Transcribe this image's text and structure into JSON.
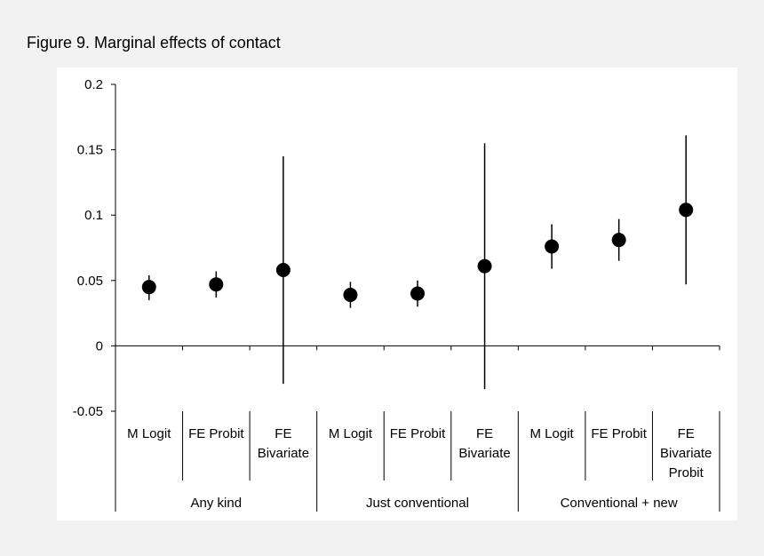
{
  "figure_title": "Figure 9. Marginal effects of contact",
  "chart_data": {
    "type": "scatter",
    "title": "",
    "xlabel": "",
    "ylabel": "",
    "ylim": [
      -0.05,
      0.2
    ],
    "yticks": [
      "0.2",
      "0.15",
      "0.1",
      "0.05",
      "0",
      "-0.05"
    ],
    "grid": false,
    "legend": "none",
    "marker_color": "#000000",
    "groups": [
      {
        "label": "Any kind",
        "points": [
          {
            "label_lines": [
              "M Logit"
            ],
            "value": 0.045,
            "lower": 0.035,
            "upper": 0.054
          },
          {
            "label_lines": [
              "FE Probit"
            ],
            "value": 0.047,
            "lower": 0.037,
            "upper": 0.057
          },
          {
            "label_lines": [
              "FE",
              "Bivariate"
            ],
            "value": 0.058,
            "lower": -0.029,
            "upper": 0.145
          }
        ]
      },
      {
        "label": "Just conventional",
        "points": [
          {
            "label_lines": [
              "M Logit"
            ],
            "value": 0.039,
            "lower": 0.029,
            "upper": 0.049
          },
          {
            "label_lines": [
              "FE Probit"
            ],
            "value": 0.04,
            "lower": 0.03,
            "upper": 0.05
          },
          {
            "label_lines": [
              "FE",
              "Bivariate"
            ],
            "value": 0.061,
            "lower": -0.033,
            "upper": 0.155
          }
        ]
      },
      {
        "label": "Conventional + new",
        "points": [
          {
            "label_lines": [
              "M Logit"
            ],
            "value": 0.076,
            "lower": 0.059,
            "upper": 0.093
          },
          {
            "label_lines": [
              "FE Probit"
            ],
            "value": 0.081,
            "lower": 0.065,
            "upper": 0.097
          },
          {
            "label_lines": [
              "FE",
              "Bivariate",
              "Probit"
            ],
            "value": 0.104,
            "lower": 0.047,
            "upper": 0.161
          }
        ]
      }
    ]
  }
}
